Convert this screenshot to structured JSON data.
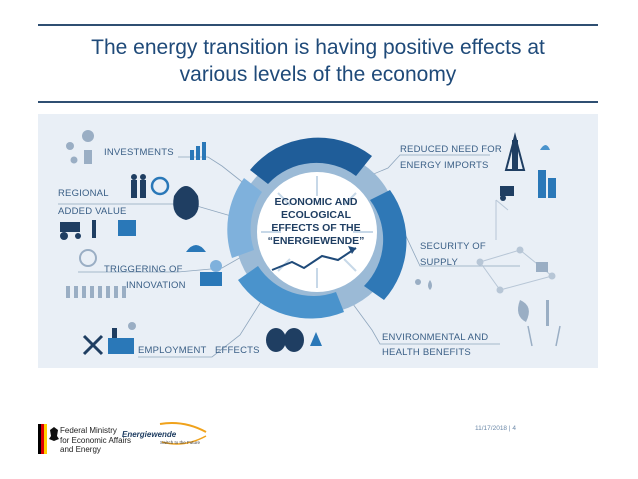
{
  "title": {
    "line1": "The energy transition is having positive effects at",
    "line2": "various levels of the economy"
  },
  "infographic": {
    "center": {
      "line1": "ECONOMIC AND",
      "line2": "ECOLOGICAL",
      "line3": "EFFECTS OF THE",
      "line4": "“ENERGIEWENDE”"
    },
    "labels": {
      "investments": "INVESTMENTS",
      "regional_1": "REGIONAL",
      "regional_2": "ADDED VALUE",
      "innovation_1": "TRIGGERING OF",
      "innovation_2": "INNOVATION",
      "employment_1": "EMPLOYMENT",
      "employment_2": "EFFECTS",
      "imports_1": "REDUCED NEED FOR",
      "imports_2": "ENERGY IMPORTS",
      "security_1": "SECURITY OF",
      "security_2": "SUPPLY",
      "environment_1": "ENVIRONMENTAL AND",
      "environment_2": "HEALTH BENEFITS"
    }
  },
  "footer": {
    "ministry_1": "Federal Ministry",
    "ministry_2": "for Economic Affairs",
    "ministry_3": "and Energy",
    "logo_text": "Energiewende",
    "logo_sub": "Switch to the Future",
    "page": "11/17/2018 | 4"
  },
  "colors": {
    "title": "#1f4a79",
    "accent_blue": "#2a78b8",
    "panel": "#e9eff6"
  }
}
